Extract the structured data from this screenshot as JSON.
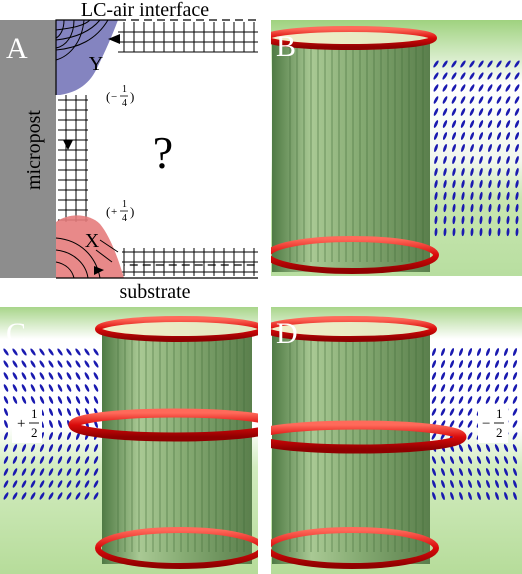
{
  "panels": {
    "a": {
      "letter": "A",
      "top_label": "LC-air interface",
      "bottom_label": "substrate",
      "side_label": "micropost",
      "defect_y": "Y",
      "defect_x": "X",
      "charge_minus": "−",
      "charge_plus": "+",
      "frac_num": "1",
      "frac_den": "4",
      "question": "?"
    },
    "b": {
      "letter": "B"
    },
    "c": {
      "letter": "C",
      "charge_sign": "+",
      "frac_num": "1",
      "frac_den": "2"
    },
    "d": {
      "letter": "D",
      "charge_sign": "−",
      "frac_num": "1",
      "frac_den": "2"
    }
  },
  "colors": {
    "micropost": "#8d8d8d",
    "defect_y_fill": "#6f6fb5",
    "defect_x_fill": "#e67c7c",
    "ring": "#e01010",
    "post_green": "#7fa36a",
    "bg_green": "#bfe0a0",
    "director": "#1a1ab0"
  }
}
